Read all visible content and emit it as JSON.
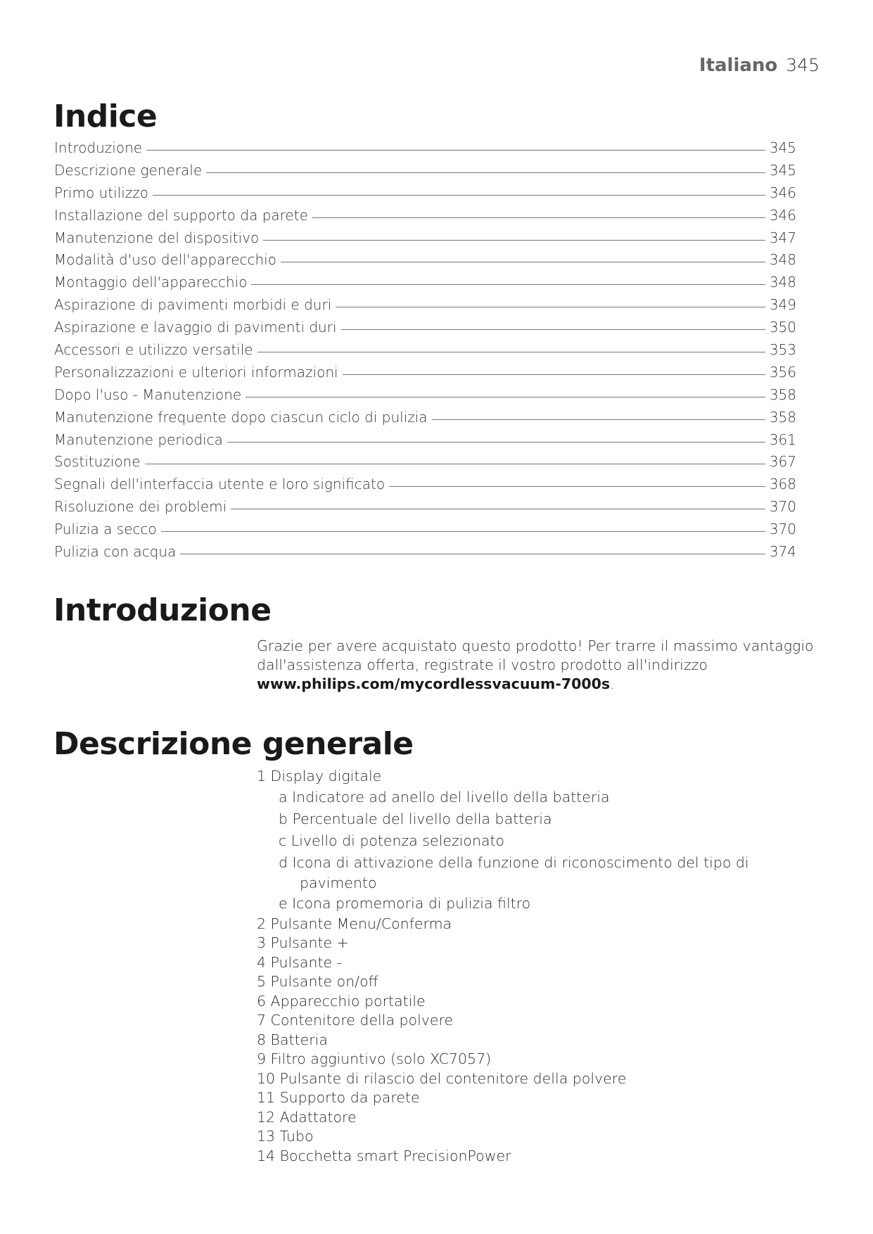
{
  "header": {
    "language": "Italiano",
    "page_number": "345"
  },
  "toc": {
    "title": "Indice",
    "entries": [
      {
        "label": "Introduzione",
        "page": "345"
      },
      {
        "label": "Descrizione generale",
        "page": "345"
      },
      {
        "label": "Primo utilizzo",
        "page": "346"
      },
      {
        "label": "Installazione del supporto da parete",
        "page": "346"
      },
      {
        "label": "Manutenzione del dispositivo",
        "page": "347"
      },
      {
        "label": "Modalità d'uso dell'apparecchio",
        "page": "348"
      },
      {
        "label": "Montaggio dell'apparecchio",
        "page": "348"
      },
      {
        "label": "Aspirazione di pavimenti morbidi e duri",
        "page": "349"
      },
      {
        "label": "Aspirazione e lavaggio di pavimenti duri",
        "page": "350"
      },
      {
        "label": "Accessori e utilizzo versatile",
        "page": "353"
      },
      {
        "label": "Personalizzazioni e ulteriori informazioni",
        "page": "356"
      },
      {
        "label": "Dopo l'uso - Manutenzione",
        "page": "358"
      },
      {
        "label": "Manutenzione frequente dopo ciascun ciclo di pulizia",
        "page": "358"
      },
      {
        "label": "Manutenzione periodica",
        "page": "361"
      },
      {
        "label": "Sostituzione",
        "page": "367"
      },
      {
        "label": "Segnali dell'interfaccia utente e loro significato",
        "page": "368"
      },
      {
        "label": "Risoluzione dei problemi",
        "page": "370"
      },
      {
        "label": "Pulizia a secco",
        "page": "370"
      },
      {
        "label": "Pulizia con acqua",
        "page": "374"
      }
    ]
  },
  "intro": {
    "title": "Introduzione",
    "text": "Grazie per avere acquistato questo prodotto! Per trarre il massimo vantaggio dall'assistenza offerta, registrate il vostro prodotto all'indirizzo",
    "link": "www.philips.com/mycordlessvacuum-7000s",
    "after": "."
  },
  "overview": {
    "title": "Descrizione generale",
    "items": [
      {
        "text": "1 Display digitale",
        "level": 0
      },
      {
        "text": "a Indicatore ad anello del livello della batteria",
        "level": 1
      },
      {
        "text": "b Percentuale del livello della batteria",
        "level": 1
      },
      {
        "text": "c Livello di potenza selezionato",
        "level": 1
      },
      {
        "text": "d Icona di attivazione della funzione di riconoscimento del tipo di",
        "level": 1
      },
      {
        "text": "pavimento",
        "level": 2
      },
      {
        "text": "e Icona promemoria di pulizia filtro",
        "level": 1
      },
      {
        "text": "2 Pulsante Menu/Conferma",
        "level": 0
      },
      {
        "text": "3 Pulsante +",
        "level": 0
      },
      {
        "text": "4 Pulsante -",
        "level": 0
      },
      {
        "text": "5 Pulsante on/off",
        "level": 0
      },
      {
        "text": "6 Apparecchio portatile",
        "level": 0
      },
      {
        "text": "7 Contenitore della polvere",
        "level": 0
      },
      {
        "text": "8 Batteria",
        "level": 0
      },
      {
        "text": "9 Filtro aggiuntivo (solo XC7057)",
        "level": 0
      },
      {
        "text": "10 Pulsante di rilascio del contenitore della polvere",
        "level": 0
      },
      {
        "text": "11 Supporto da parete",
        "level": 0
      },
      {
        "text": "12 Adattatore",
        "level": 0
      },
      {
        "text": "13 Tubo",
        "level": 0
      },
      {
        "text": "14 Bocchetta smart PrecisionPower",
        "level": 0
      }
    ]
  }
}
